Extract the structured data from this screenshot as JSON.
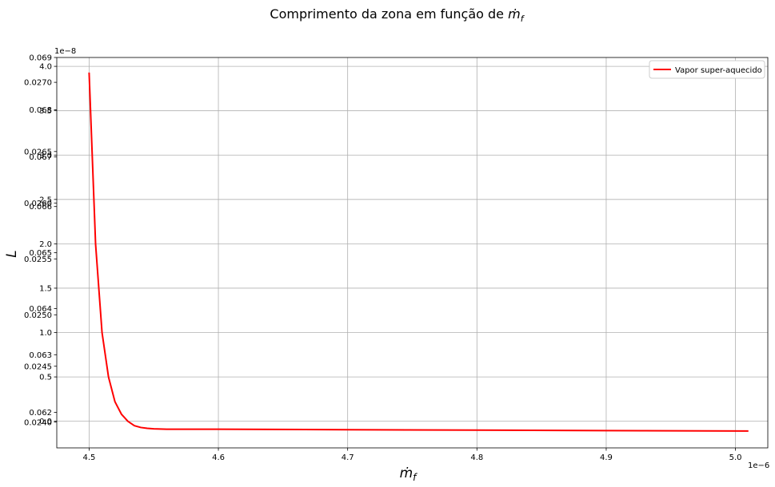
{
  "chart_data": {
    "type": "line",
    "title_text": "Comprimento da zona em função de ",
    "title_math": "ṁ",
    "title_math_sub": "f",
    "xlabel_math": "ṁ",
    "xlabel_math_sub": "f",
    "ylabel": "L",
    "x_offset_text": "1e−6",
    "y_offset_text": "1e−8",
    "xlim": [
      4.475,
      5.025
    ],
    "ylim": [
      -0.3,
      4.1
    ],
    "x_ticks": [
      "4.5",
      "4.6",
      "4.7",
      "4.8",
      "4.9",
      "5.0"
    ],
    "y_ticks": [
      "0.0",
      "0.5",
      "1.0",
      "1.5",
      "2.0",
      "2.5",
      "3.0",
      "3.5",
      "4.0"
    ],
    "ghost_ticks_a": [
      {
        "label": "0.062",
        "value": 0.1
      },
      {
        "label": "0.063",
        "value": 0.75
      },
      {
        "label": "0.064",
        "value": 1.27
      },
      {
        "label": "0.065",
        "value": 1.9
      },
      {
        "label": "0.066",
        "value": 2.42
      },
      {
        "label": "0.067",
        "value": 2.98
      },
      {
        "label": "0.068",
        "value": 3.51
      },
      {
        "label": "0.069",
        "value": 4.1
      }
    ],
    "ghost_ticks_b": [
      {
        "label": "0.0240",
        "value": -0.01
      },
      {
        "label": "0.0245",
        "value": 0.62
      },
      {
        "label": "0.0250",
        "value": 1.2
      },
      {
        "label": "0.0255",
        "value": 1.83
      },
      {
        "label": "0.0260",
        "value": 2.46
      },
      {
        "label": "0.0265",
        "value": 3.04
      },
      {
        "label": "0.0270",
        "value": 3.82
      }
    ],
    "grid": true,
    "legend_position": "top-right",
    "series": [
      {
        "name": "Vapor super-aquecido",
        "color": "#ff0000",
        "x": [
          4.5,
          4.505,
          4.51,
          4.515,
          4.52,
          4.525,
          4.53,
          4.535,
          4.54,
          4.545,
          4.55,
          4.56,
          4.58,
          4.6,
          4.7,
          4.8,
          4.9,
          5.01
        ],
        "y": [
          3.93,
          2.0,
          1.0,
          0.5,
          0.22,
          0.08,
          0.0,
          -0.05,
          -0.07,
          -0.08,
          -0.085,
          -0.09,
          -0.09,
          -0.09,
          -0.095,
          -0.1,
          -0.105,
          -0.11
        ]
      }
    ]
  }
}
